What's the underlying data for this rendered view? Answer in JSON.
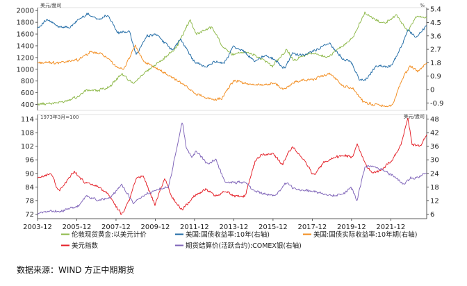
{
  "source_note": "数据来源：WIND 方正中期期货",
  "colors": {
    "gold": "#8db848",
    "treasury10y": "#1f6aa5",
    "real10y": "#f28c1e",
    "dxy": "#e41e26",
    "silver": "#7e63b8",
    "axis": "#333333"
  },
  "chart_data": [
    {
      "type": "line",
      "panel": "top",
      "title": "",
      "left_unit": "美元/盎司",
      "right_unit": "%",
      "x_range": [
        2003.92,
        2023.75
      ],
      "y_left": {
        "range": [
          300,
          2050
        ],
        "ticks": [
          400,
          600,
          800,
          1000,
          1200,
          1400,
          1600,
          1800,
          2000
        ]
      },
      "y_right": {
        "range": [
          -1.4,
          5.5
        ],
        "ticks": [
          -0.9,
          0.0,
          0.9,
          1.8,
          2.7,
          3.6,
          4.5,
          5.4
        ]
      },
      "series": [
        {
          "name": "伦敦现货黄金:以美元计价",
          "axis": "left",
          "color": "gold",
          "x": [
            2004.0,
            2005.0,
            2006.0,
            2006.4,
            2007.0,
            2007.6,
            2008.2,
            2008.8,
            2009.3,
            2010.0,
            2010.5,
            2011.0,
            2011.7,
            2012.0,
            2012.8,
            2013.3,
            2013.8,
            2014.5,
            2015.2,
            2015.9,
            2016.6,
            2017.0,
            2017.8,
            2018.7,
            2019.0,
            2019.6,
            2020.0,
            2020.6,
            2021.0,
            2021.6,
            2022.2,
            2022.8,
            2023.2,
            2023.75
          ],
          "values": [
            410,
            430,
            540,
            650,
            640,
            700,
            920,
            760,
            920,
            1100,
            1220,
            1380,
            1850,
            1600,
            1720,
            1420,
            1250,
            1300,
            1200,
            1060,
            1330,
            1150,
            1280,
            1200,
            1290,
            1420,
            1550,
            1970,
            1860,
            1780,
            1920,
            1650,
            1900,
            1880
          ]
        },
        {
          "name": "美国:国债收益率:10年(右轴)",
          "axis": "right",
          "color": "treasury10y",
          "x": [
            2004.0,
            2004.4,
            2005.0,
            2005.6,
            2006.0,
            2006.5,
            2007.0,
            2007.5,
            2008.0,
            2008.6,
            2008.95,
            2009.5,
            2010.0,
            2010.8,
            2011.2,
            2011.9,
            2012.5,
            2013.0,
            2013.4,
            2013.9,
            2014.5,
            2015.0,
            2015.5,
            2016.0,
            2016.5,
            2016.9,
            2017.5,
            2018.0,
            2018.8,
            2019.5,
            2019.9,
            2020.3,
            2020.6,
            2021.2,
            2021.8,
            2022.0,
            2022.5,
            2022.8,
            2023.2,
            2023.75
          ],
          "values": [
            4.2,
            4.7,
            4.2,
            4.2,
            4.7,
            5.1,
            4.7,
            5.0,
            3.8,
            3.9,
            2.3,
            3.6,
            3.7,
            2.6,
            3.4,
            1.9,
            1.5,
            1.9,
            1.7,
            2.9,
            2.5,
            1.9,
            2.3,
            2.0,
            1.4,
            2.4,
            2.3,
            2.6,
            3.1,
            2.0,
            1.9,
            0.7,
            0.6,
            1.6,
            1.5,
            1.7,
            3.0,
            4.0,
            3.5,
            4.3
          ]
        },
        {
          "name": "美国:国债实际收益率:10年期(右轴)",
          "axis": "right",
          "color": "real10y",
          "x": [
            2004.0,
            2005.0,
            2006.0,
            2006.6,
            2007.2,
            2007.8,
            2008.3,
            2008.9,
            2009.3,
            2010.0,
            2010.8,
            2011.5,
            2012.0,
            2012.9,
            2013.3,
            2013.9,
            2014.5,
            2015.0,
            2016.0,
            2016.5,
            2017.0,
            2018.0,
            2018.8,
            2019.5,
            2020.0,
            2020.5,
            2021.0,
            2021.6,
            2022.0,
            2022.5,
            2022.9,
            2023.3,
            2023.75
          ],
          "values": [
            1.8,
            1.8,
            2.0,
            2.5,
            2.4,
            1.7,
            1.3,
            3.0,
            1.9,
            1.4,
            0.8,
            0.2,
            -0.3,
            -0.7,
            -0.6,
            0.6,
            0.4,
            0.3,
            0.4,
            0.0,
            0.5,
            0.7,
            1.1,
            0.2,
            0.1,
            -0.8,
            -1.0,
            -1.1,
            -1.1,
            0.7,
            1.6,
            1.2,
            1.8
          ]
        }
      ],
      "x_tick_labels": []
    },
    {
      "type": "line",
      "panel": "bottom",
      "title": "",
      "left_unit": "1973年3月=100",
      "right_unit": "美元/盎司",
      "x_range": [
        2003.92,
        2023.75
      ],
      "x_ticks": [
        2003.92,
        2005.92,
        2007.92,
        2009.92,
        2011.92,
        2013.92,
        2015.92,
        2017.92,
        2019.92,
        2021.92
      ],
      "x_tick_labels": [
        "2003-12",
        "2005-12",
        "2007-12",
        "2009-12",
        "2011-12",
        "2013-12",
        "2015-12",
        "2017-12",
        "2019-12",
        "2021-12"
      ],
      "y_left": {
        "range": [
          70,
          116
        ],
        "ticks": [
          72,
          78,
          84,
          90,
          96,
          102,
          108,
          114
        ]
      },
      "y_right": {
        "range": [
          4,
          50
        ],
        "ticks": [
          6,
          12,
          18,
          24,
          30,
          36,
          42,
          48
        ]
      },
      "series": [
        {
          "name": "美元指数",
          "axis": "left",
          "color": "dxy",
          "x": [
            2004.0,
            2004.6,
            2005.0,
            2005.8,
            2006.3,
            2007.0,
            2007.5,
            2008.2,
            2008.6,
            2008.95,
            2009.3,
            2009.9,
            2010.4,
            2010.8,
            2011.3,
            2011.9,
            2012.5,
            2013.0,
            2013.5,
            2014.0,
            2014.5,
            2015.0,
            2015.3,
            2015.9,
            2016.4,
            2016.9,
            2017.5,
            2018.0,
            2018.5,
            2019.0,
            2019.6,
            2020.0,
            2020.2,
            2020.7,
            2021.0,
            2021.5,
            2022.0,
            2022.4,
            2022.8,
            2023.0,
            2023.4,
            2023.75
          ],
          "values": [
            88,
            90,
            82,
            91,
            86,
            84,
            81,
            72,
            78,
            88,
            89,
            76,
            88,
            79,
            74,
            80,
            83,
            80,
            82,
            80,
            80,
            95,
            98,
            99,
            94,
            102,
            96,
            89,
            95,
            97,
            98,
            97,
            103,
            93,
            90,
            92,
            96,
            102,
            114,
            103,
            102,
            107
          ]
        },
        {
          "name": "期货结算价(活跃合约):COMEX银(右轴)",
          "axis": "right",
          "color": "silver",
          "x": [
            2004.0,
            2004.4,
            2005.0,
            2006.0,
            2006.4,
            2007.0,
            2007.6,
            2008.2,
            2008.8,
            2009.3,
            2010.0,
            2010.6,
            2011.3,
            2011.5,
            2011.8,
            2012.0,
            2012.6,
            2013.0,
            2013.5,
            2013.9,
            2014.5,
            2015.0,
            2016.0,
            2016.6,
            2017.0,
            2018.0,
            2018.9,
            2019.5,
            2019.9,
            2020.2,
            2020.6,
            2021.0,
            2021.6,
            2022.0,
            2022.6,
            2022.9,
            2023.2,
            2023.75
          ],
          "values": [
            6,
            7.5,
            7,
            9.5,
            14,
            12,
            13,
            19,
            11,
            14,
            17,
            18,
            47,
            35,
            31,
            34,
            28,
            30,
            20,
            20,
            20,
            16,
            14,
            20,
            17,
            16,
            14,
            15,
            18,
            12,
            27,
            27,
            25,
            23,
            19,
            22,
            22,
            24
          ]
        }
      ]
    }
  ]
}
